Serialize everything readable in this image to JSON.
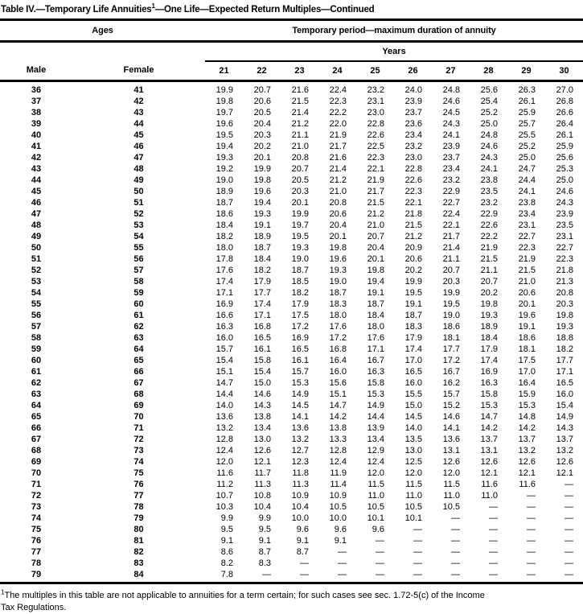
{
  "title": {
    "part1": "Table IV.—Temporary Life Annuities",
    "superscript": "1",
    "part2": "—One Life—Expected Return Multiples—Continued"
  },
  "header": {
    "ages_label": "Ages",
    "period_label": "Temporary period—maximum duration of annuity",
    "years_label": "Years",
    "male_label": "Male",
    "female_label": "Female",
    "year_columns": [
      "21",
      "22",
      "23",
      "24",
      "25",
      "26",
      "27",
      "28",
      "29",
      "30"
    ]
  },
  "missing_marker": "—",
  "table_rows": [
    {
      "male": "36",
      "female": "41",
      "values": [
        "19.9",
        "20.7",
        "21.6",
        "22.4",
        "23.2",
        "24.0",
        "24.8",
        "25.6",
        "26.3",
        "27.0"
      ]
    },
    {
      "male": "37",
      "female": "42",
      "values": [
        "19.8",
        "20.6",
        "21.5",
        "22.3",
        "23.1",
        "23.9",
        "24.6",
        "25.4",
        "26.1",
        "26.8"
      ]
    },
    {
      "male": "38",
      "female": "43",
      "values": [
        "19.7",
        "20.5",
        "21.4",
        "22.2",
        "23.0",
        "23.7",
        "24.5",
        "25.2",
        "25.9",
        "26.6"
      ]
    },
    {
      "male": "39",
      "female": "44",
      "values": [
        "19.6",
        "20.4",
        "21.2",
        "22.0",
        "22.8",
        "23.6",
        "24.3",
        "25.0",
        "25.7",
        "26.4"
      ]
    },
    {
      "male": "40",
      "female": "45",
      "values": [
        "19.5",
        "20.3",
        "21.1",
        "21.9",
        "22.6",
        "23.4",
        "24.1",
        "24.8",
        "25.5",
        "26.1"
      ]
    },
    {
      "male": "41",
      "female": "46",
      "values": [
        "19.4",
        "20.2",
        "21.0",
        "21.7",
        "22.5",
        "23.2",
        "23.9",
        "24.6",
        "25.2",
        "25.9"
      ]
    },
    {
      "male": "42",
      "female": "47",
      "values": [
        "19.3",
        "20.1",
        "20.8",
        "21.6",
        "22.3",
        "23.0",
        "23.7",
        "24.3",
        "25.0",
        "25.6"
      ]
    },
    {
      "male": "43",
      "female": "48",
      "values": [
        "19.2",
        "19.9",
        "20.7",
        "21.4",
        "22.1",
        "22.8",
        "23.4",
        "24.1",
        "24.7",
        "25.3"
      ]
    },
    {
      "male": "44",
      "female": "49",
      "values": [
        "19.0",
        "19.8",
        "20.5",
        "21.2",
        "21.9",
        "22.6",
        "23.2",
        "23.8",
        "24.4",
        "25.0"
      ]
    },
    {
      "male": "45",
      "female": "50",
      "values": [
        "18.9",
        "19.6",
        "20.3",
        "21.0",
        "21.7",
        "22.3",
        "22.9",
        "23.5",
        "24.1",
        "24.6"
      ]
    },
    {
      "male": "46",
      "female": "51",
      "values": [
        "18.7",
        "19.4",
        "20.1",
        "20.8",
        "21.5",
        "22.1",
        "22.7",
        "23.2",
        "23.8",
        "24.3"
      ]
    },
    {
      "male": "47",
      "female": "52",
      "values": [
        "18.6",
        "19.3",
        "19.9",
        "20.6",
        "21.2",
        "21.8",
        "22.4",
        "22.9",
        "23.4",
        "23.9"
      ]
    },
    {
      "male": "48",
      "female": "53",
      "values": [
        "18.4",
        "19.1",
        "19.7",
        "20.4",
        "21.0",
        "21.5",
        "22.1",
        "22.6",
        "23.1",
        "23.5"
      ]
    },
    {
      "male": "49",
      "female": "54",
      "values": [
        "18.2",
        "18.9",
        "19.5",
        "20.1",
        "20.7",
        "21.2",
        "21.7",
        "22.2",
        "22.7",
        "23.1"
      ]
    },
    {
      "male": "50",
      "female": "55",
      "values": [
        "18.0",
        "18.7",
        "19.3",
        "19.8",
        "20.4",
        "20.9",
        "21.4",
        "21.9",
        "22.3",
        "22.7"
      ]
    },
    {
      "male": "51",
      "female": "56",
      "values": [
        "17.8",
        "18.4",
        "19.0",
        "19.6",
        "20.1",
        "20.6",
        "21.1",
        "21.5",
        "21.9",
        "22.3"
      ]
    },
    {
      "male": "52",
      "female": "57",
      "values": [
        "17.6",
        "18.2",
        "18.7",
        "19.3",
        "19.8",
        "20.2",
        "20.7",
        "21.1",
        "21.5",
        "21.8"
      ]
    },
    {
      "male": "53",
      "female": "58",
      "values": [
        "17.4",
        "17.9",
        "18.5",
        "19.0",
        "19.4",
        "19.9",
        "20.3",
        "20.7",
        "21.0",
        "21.3"
      ]
    },
    {
      "male": "54",
      "female": "59",
      "values": [
        "17.1",
        "17.7",
        "18.2",
        "18.7",
        "19.1",
        "19.5",
        "19.9",
        "20.2",
        "20.6",
        "20.8"
      ]
    },
    {
      "male": "55",
      "female": "60",
      "values": [
        "16.9",
        "17.4",
        "17.9",
        "18.3",
        "18.7",
        "19.1",
        "19.5",
        "19.8",
        "20.1",
        "20.3"
      ]
    },
    {
      "male": "56",
      "female": "61",
      "values": [
        "16.6",
        "17.1",
        "17.5",
        "18.0",
        "18.4",
        "18.7",
        "19.0",
        "19.3",
        "19.6",
        "19.8"
      ]
    },
    {
      "male": "57",
      "female": "62",
      "values": [
        "16.3",
        "16.8",
        "17.2",
        "17.6",
        "18.0",
        "18.3",
        "18.6",
        "18.9",
        "19.1",
        "19.3"
      ]
    },
    {
      "male": "58",
      "female": "63",
      "values": [
        "16.0",
        "16.5",
        "16.9",
        "17.2",
        "17.6",
        "17.9",
        "18.1",
        "18.4",
        "18.6",
        "18.8"
      ]
    },
    {
      "male": "59",
      "female": "64",
      "values": [
        "15.7",
        "16.1",
        "16.5",
        "16.8",
        "17.1",
        "17.4",
        "17.7",
        "17.9",
        "18.1",
        "18.2"
      ]
    },
    {
      "male": "60",
      "female": "65",
      "values": [
        "15.4",
        "15.8",
        "16.1",
        "16.4",
        "16.7",
        "17.0",
        "17.2",
        "17.4",
        "17.5",
        "17.7"
      ]
    },
    {
      "male": "61",
      "female": "66",
      "values": [
        "15.1",
        "15.4",
        "15.7",
        "16.0",
        "16.3",
        "16.5",
        "16.7",
        "16.9",
        "17.0",
        "17.1"
      ]
    },
    {
      "male": "62",
      "female": "67",
      "values": [
        "14.7",
        "15.0",
        "15.3",
        "15.6",
        "15.8",
        "16.0",
        "16.2",
        "16.3",
        "16.4",
        "16.5"
      ]
    },
    {
      "male": "63",
      "female": "68",
      "values": [
        "14.4",
        "14.6",
        "14.9",
        "15.1",
        "15.3",
        "15.5",
        "15.7",
        "15.8",
        "15.9",
        "16.0"
      ]
    },
    {
      "male": "64",
      "female": "69",
      "values": [
        "14.0",
        "14.3",
        "14.5",
        "14.7",
        "14.9",
        "15.0",
        "15.2",
        "15.3",
        "15.3",
        "15.4"
      ]
    },
    {
      "male": "65",
      "female": "70",
      "values": [
        "13.6",
        "13.8",
        "14.1",
        "14.2",
        "14.4",
        "14.5",
        "14.6",
        "14.7",
        "14.8",
        "14.9"
      ]
    },
    {
      "male": "66",
      "female": "71",
      "values": [
        "13.2",
        "13.4",
        "13.6",
        "13.8",
        "13.9",
        "14.0",
        "14.1",
        "14.2",
        "14.2",
        "14.3"
      ]
    },
    {
      "male": "67",
      "female": "72",
      "values": [
        "12.8",
        "13.0",
        "13.2",
        "13.3",
        "13.4",
        "13.5",
        "13.6",
        "13.7",
        "13.7",
        "13.7"
      ]
    },
    {
      "male": "68",
      "female": "73",
      "values": [
        "12.4",
        "12.6",
        "12.7",
        "12.8",
        "12.9",
        "13.0",
        "13.1",
        "13.1",
        "13.2",
        "13.2"
      ]
    },
    {
      "male": "69",
      "female": "74",
      "values": [
        "12.0",
        "12.1",
        "12.3",
        "12.4",
        "12.4",
        "12.5",
        "12.6",
        "12.6",
        "12.6",
        "12.6"
      ]
    },
    {
      "male": "70",
      "female": "75",
      "values": [
        "11.6",
        "11.7",
        "11.8",
        "11.9",
        "12.0",
        "12.0",
        "12.0",
        "12.1",
        "12.1",
        "12.1"
      ]
    },
    {
      "male": "71",
      "female": "76",
      "values": [
        "11.2",
        "11.3",
        "11.3",
        "11.4",
        "11.5",
        "11.5",
        "11.5",
        "11.6",
        "11.6",
        "—"
      ]
    },
    {
      "male": "72",
      "female": "77",
      "values": [
        "10.7",
        "10.8",
        "10.9",
        "10.9",
        "11.0",
        "11.0",
        "11.0",
        "11.0",
        "—",
        "—"
      ]
    },
    {
      "male": "73",
      "female": "78",
      "values": [
        "10.3",
        "10.4",
        "10.4",
        "10.5",
        "10.5",
        "10.5",
        "10.5",
        "—",
        "—",
        "—"
      ]
    },
    {
      "male": "74",
      "female": "79",
      "values": [
        "9.9",
        "9.9",
        "10.0",
        "10.0",
        "10.1",
        "10.1",
        "—",
        "—",
        "—",
        "—"
      ]
    },
    {
      "male": "75",
      "female": "80",
      "values": [
        "9.5",
        "9.5",
        "9.6",
        "9.6",
        "9.6",
        "—",
        "—",
        "—",
        "—",
        "—"
      ]
    },
    {
      "male": "76",
      "female": "81",
      "values": [
        "9.1",
        "9.1",
        "9.1",
        "9.1",
        "—",
        "—",
        "—",
        "—",
        "—",
        "—"
      ]
    },
    {
      "male": "77",
      "female": "82",
      "values": [
        "8.6",
        "8.7",
        "8.7",
        "—",
        "—",
        "—",
        "—",
        "—",
        "—",
        "—"
      ]
    },
    {
      "male": "78",
      "female": "83",
      "values": [
        "8.2",
        "8.3",
        "—",
        "—",
        "—",
        "—",
        "—",
        "—",
        "—",
        "—"
      ]
    },
    {
      "male": "79",
      "female": "84",
      "values": [
        "7.8",
        "—",
        "—",
        "—",
        "—",
        "—",
        "—",
        "—",
        "—",
        "—"
      ]
    }
  ],
  "footnote": {
    "superscript": "1",
    "line1": "The multiples in this table are not applicable to annuities for a term certain; for such cases see sec. 1.72-5(c) of the Income",
    "line2": "Tax Regulations."
  }
}
